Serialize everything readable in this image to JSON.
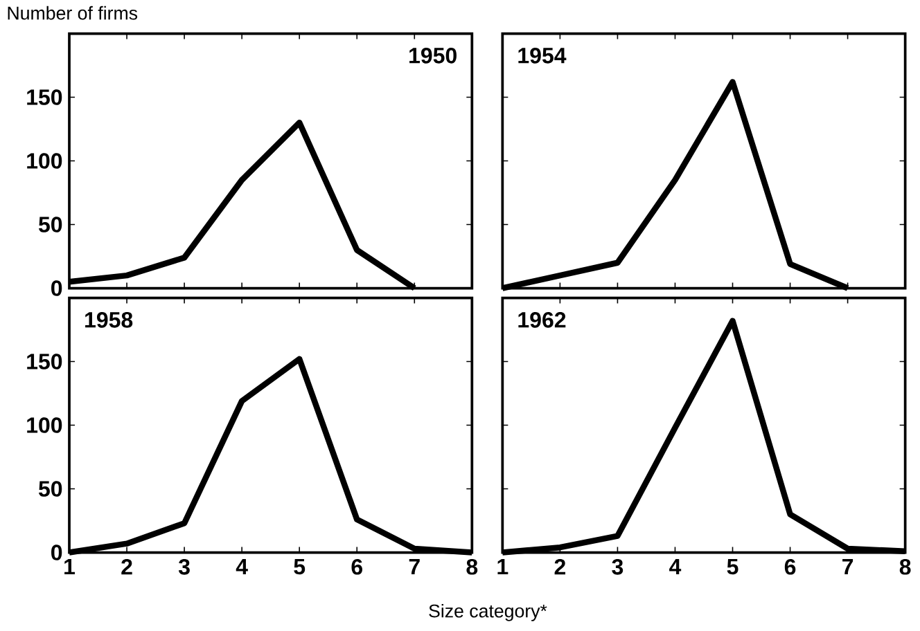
{
  "chart_data": [
    {
      "type": "line",
      "title": "1950",
      "ylabel": "Number of firms",
      "x": [
        1,
        2,
        3,
        4,
        5,
        6,
        7
      ],
      "xlim": [
        1,
        8
      ],
      "xticks": [
        1,
        2,
        3,
        4,
        5,
        6,
        7,
        8
      ],
      "ylim": [
        0,
        200
      ],
      "yticks": [
        0,
        50,
        100,
        150
      ],
      "tick_labels": "y",
      "series": [
        {
          "color": "#000000",
          "values": [
            5,
            10,
            24,
            85,
            130,
            30,
            0
          ]
        }
      ]
    },
    {
      "type": "line",
      "title": "1954",
      "x": [
        1,
        2,
        3,
        4,
        5,
        6,
        7
      ],
      "xlim": [
        1,
        8
      ],
      "xticks": [
        1,
        2,
        3,
        4,
        5,
        6,
        7,
        8
      ],
      "ylim": [
        0,
        200
      ],
      "yticks": [
        0,
        50,
        100,
        150
      ],
      "tick_labels": false,
      "series": [
        {
          "color": "#000000",
          "values": [
            0,
            10,
            20,
            85,
            162,
            19,
            0
          ]
        }
      ]
    },
    {
      "type": "line",
      "title": "1958",
      "xlabel": "Size category*",
      "x": [
        1,
        2,
        3,
        4,
        5,
        6,
        7,
        8
      ],
      "xlim": [
        1,
        8
      ],
      "xticks": [
        1,
        2,
        3,
        4,
        5,
        6,
        7,
        8
      ],
      "ylim": [
        0,
        200
      ],
      "yticks": [
        0,
        50,
        100,
        150
      ],
      "series": [
        {
          "color": "#000000",
          "values": [
            0,
            7,
            23,
            119,
            152,
            26,
            3,
            0
          ]
        }
      ]
    },
    {
      "type": "line",
      "title": "1962",
      "x": [
        1,
        2,
        3,
        4,
        5,
        6,
        7,
        8
      ],
      "xlim": [
        1,
        8
      ],
      "xticks": [
        1,
        2,
        3,
        4,
        5,
        6,
        7,
        8
      ],
      "ylim": [
        0,
        200
      ],
      "yticks": [
        0,
        50,
        100,
        150
      ],
      "tick_labels": "x",
      "series": [
        {
          "color": "#000000",
          "values": [
            0,
            4,
            13,
            98,
            182,
            30,
            3,
            1
          ]
        }
      ]
    }
  ]
}
